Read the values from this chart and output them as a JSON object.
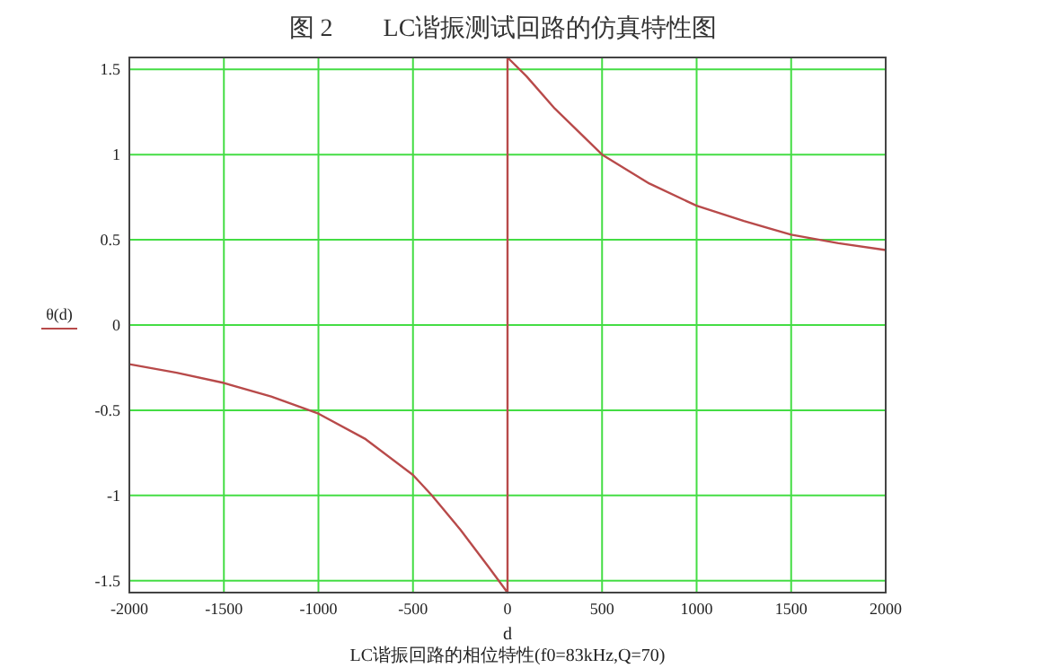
{
  "chart_data": {
    "type": "line",
    "title": "图 2        LC谐振测试回路的仿真特性图",
    "xlabel": "d",
    "ylabel": "θ(d)",
    "annotations": [
      "LC谐振回路的相位特性(f0=83kHz,Q=70)"
    ],
    "x": [
      -2000,
      -1750,
      -1500,
      -1250,
      -1000,
      -750,
      -500,
      -400,
      -250,
      -100,
      0,
      0,
      100,
      250,
      500,
      750,
      1000,
      1250,
      1500,
      1750,
      2000
    ],
    "series": [
      {
        "color": "#b84a4a",
        "values": [
          -0.23,
          -0.28,
          -0.34,
          -0.42,
          -0.52,
          -0.67,
          -0.88,
          -1.0,
          -1.2,
          -1.42,
          -1.57,
          1.57,
          1.46,
          1.27,
          1.0,
          0.83,
          0.7,
          0.61,
          0.53,
          0.48,
          0.44
        ]
      }
    ],
    "xlim": [
      -2000,
      2000
    ],
    "ylim": [
      -1.57,
      1.57
    ],
    "xticks": [
      -2000,
      -1500,
      -1000,
      -500,
      0,
      500,
      1000,
      1500,
      2000
    ],
    "yticks": [
      -1.5,
      -1,
      -0.5,
      0,
      0.5,
      1,
      1.5
    ],
    "grid": true,
    "marker": "none",
    "line_style": "solid"
  }
}
